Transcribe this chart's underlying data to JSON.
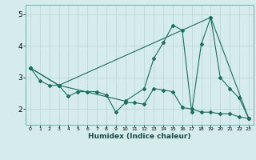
{
  "xlabel": "Humidex (Indice chaleur)",
  "bg_color": "#d6ecec",
  "line_color": "#1a6e5e",
  "grid_color": "#b8d4d4",
  "xlim": [
    -0.5,
    23.5
  ],
  "ylim": [
    1.5,
    5.3
  ],
  "yticks": [
    2,
    3,
    4,
    5
  ],
  "xticks": [
    0,
    1,
    2,
    3,
    4,
    5,
    6,
    7,
    8,
    9,
    10,
    11,
    12,
    13,
    14,
    15,
    16,
    17,
    18,
    19,
    20,
    21,
    22,
    23
  ],
  "series1_x": [
    0,
    1,
    2,
    3,
    4,
    5,
    6,
    7,
    8,
    9,
    10,
    11,
    12,
    13,
    14,
    15,
    16,
    17,
    18,
    19,
    20,
    21,
    22,
    23
  ],
  "series1_y": [
    3.3,
    2.9,
    2.75,
    2.75,
    2.4,
    2.55,
    2.55,
    2.55,
    2.45,
    1.9,
    2.2,
    2.2,
    2.15,
    2.65,
    2.6,
    2.55,
    2.05,
    2.0,
    1.9,
    1.9,
    1.85,
    1.85,
    1.75,
    1.7
  ],
  "series2_x": [
    0,
    3,
    10,
    12,
    13,
    14,
    15,
    16,
    17,
    18,
    19,
    20,
    21,
    22,
    23
  ],
  "series2_y": [
    3.3,
    2.75,
    2.25,
    2.65,
    3.6,
    4.1,
    4.65,
    4.5,
    1.9,
    4.05,
    4.9,
    3.0,
    2.65,
    2.35,
    1.7
  ],
  "series3_x": [
    0,
    3,
    19,
    23
  ],
  "series3_y": [
    3.3,
    2.75,
    4.9,
    1.7
  ]
}
